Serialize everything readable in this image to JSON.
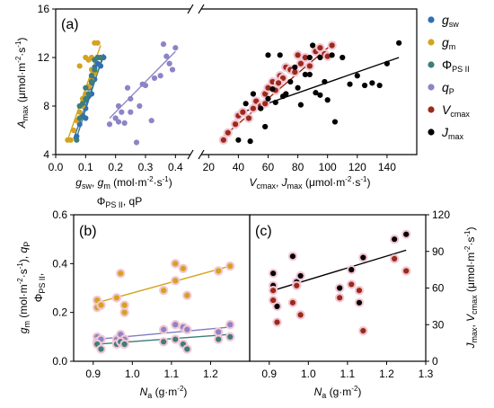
{
  "colors": {
    "gsw": "#2f6fb6",
    "gm": "#d4a320",
    "phips": "#3e7d7a",
    "qp": "#8c84c6",
    "vcmax": "#9a2a1a",
    "jmax": "#000000",
    "halo": "#f3c6d4",
    "gm_fit": "#d4a320",
    "qp_fit": "#7f7bc2",
    "phi_fit": "#3e7d7a",
    "vcmax_fit": "#b4321f",
    "jmax_fit": "#000000"
  },
  "chart_data": [
    {
      "panel": "(a)",
      "type": "scatter",
      "ylabel_main": "A",
      "ylabel_sub": "max",
      "ylabel_unit": " (μmol·m⁻²·s⁻¹)",
      "ylim": [
        4,
        16
      ],
      "yticks": [
        "4",
        "8",
        "12",
        "16"
      ],
      "left": {
        "xlim": [
          0,
          0.45
        ],
        "xticks": [
          "0.0",
          "0.1",
          "0.2",
          "0.3",
          "0.4"
        ],
        "xlabel_line1": "g_sw, g_m (mol·m⁻²·s⁻¹)",
        "xlabel_line2": "Φ_PSII, qP"
      },
      "right": {
        "xlim": [
          15,
          160
        ],
        "xticks": [
          "20",
          "40",
          "60",
          "80",
          "100",
          "120",
          "140"
        ],
        "xlabel": "V_cmax, J_max (μmol·m⁻²·s⁻¹)"
      },
      "legend": [
        {
          "key": "gsw",
          "label": "g",
          "sub": "sw"
        },
        {
          "key": "gm",
          "label": "g",
          "sub": "m"
        },
        {
          "key": "phips",
          "label": "Φ",
          "sub": "PS II"
        },
        {
          "key": "qp",
          "label": "q",
          "sub": "P"
        },
        {
          "key": "vcmax",
          "label": "V",
          "sub": "cmax"
        },
        {
          "key": "jmax",
          "label": "J",
          "sub": "max"
        }
      ],
      "series": [
        {
          "key": "gsw",
          "side": "left",
          "x": [
            0.07,
            0.08,
            0.09,
            0.1,
            0.1,
            0.11,
            0.11,
            0.12,
            0.12,
            0.13,
            0.13,
            0.14,
            0.14,
            0.15,
            0.15,
            0.16,
            0.09,
            0.1,
            0.12,
            0.13
          ],
          "y": [
            5.5,
            6.5,
            7.2,
            7.8,
            8.5,
            8.8,
            9.5,
            9.9,
            10.5,
            10.8,
            11.2,
            11.5,
            12.0,
            12.0,
            11.3,
            12.0,
            8.0,
            7.0,
            9.0,
            10.2
          ]
        },
        {
          "key": "gm",
          "side": "left",
          "x": [
            0.04,
            0.05,
            0.06,
            0.07,
            0.08,
            0.09,
            0.09,
            0.1,
            0.11,
            0.12,
            0.13,
            0.12,
            0.1,
            0.08,
            0.11,
            0.13,
            0.14,
            0.12
          ],
          "y": [
            5.2,
            5.2,
            6.0,
            6.8,
            7.5,
            8.0,
            8.6,
            9.0,
            9.6,
            10.1,
            10.7,
            12.0,
            12.0,
            11.3,
            11.8,
            13.2,
            13.2,
            11.0
          ]
        },
        {
          "key": "phips",
          "side": "left",
          "x": [
            0.07,
            0.08,
            0.08,
            0.09,
            0.1,
            0.1,
            0.11,
            0.12,
            0.12,
            0.13,
            0.13,
            0.14,
            0.15
          ],
          "y": [
            5.2,
            7.0,
            8.0,
            8.2,
            8.6,
            9.5,
            9.0,
            10.0,
            10.5,
            11.0,
            11.8,
            12.0,
            12.0
          ]
        },
        {
          "key": "qp",
          "side": "left",
          "x": [
            0.18,
            0.2,
            0.21,
            0.22,
            0.23,
            0.24,
            0.25,
            0.27,
            0.28,
            0.29,
            0.3,
            0.32,
            0.33,
            0.35,
            0.36,
            0.37,
            0.38,
            0.39,
            0.4,
            0.21,
            0.25
          ],
          "y": [
            6.5,
            7.0,
            8.0,
            7.5,
            6.6,
            9.5,
            7.5,
            5.0,
            8.0,
            9.8,
            9.7,
            6.8,
            10.3,
            10.5,
            13.1,
            12.1,
            11.5,
            11.0,
            12.8,
            6.7,
            8.6
          ]
        },
        {
          "key": "vcmax",
          "side": "right",
          "x": [
            30,
            33,
            38,
            40,
            43,
            47,
            50,
            52,
            55,
            58,
            60,
            63,
            65,
            68,
            70,
            72,
            75,
            78,
            80,
            82,
            85,
            88,
            92,
            95,
            98,
            100,
            103,
            58,
            67
          ],
          "y": [
            5.2,
            5.8,
            6.5,
            7.2,
            7.5,
            7.0,
            7.8,
            8.4,
            8.0,
            9.0,
            9.5,
            10.0,
            9.3,
            10.5,
            10.3,
            11.2,
            11.0,
            10.8,
            12.2,
            11.5,
            12.0,
            11.3,
            12.5,
            12.8,
            12.3,
            12.1,
            13.0,
            8.2,
            9.9
          ]
        },
        {
          "key": "jmax",
          "side": "right",
          "x": [
            40,
            45,
            48,
            50,
            55,
            58,
            60,
            63,
            65,
            68,
            70,
            72,
            75,
            78,
            80,
            82,
            85,
            88,
            90,
            92,
            95,
            98,
            100,
            103,
            105,
            110,
            115,
            120,
            125,
            130,
            135,
            140,
            148,
            88,
            60,
            95
          ],
          "y": [
            5.2,
            8.2,
            5.1,
            9.0,
            7.8,
            6.3,
            8.6,
            9.4,
            8.3,
            12.2,
            8.8,
            9.0,
            10.0,
            11.2,
            9.5,
            8.1,
            10.6,
            10.6,
            13.0,
            9.1,
            8.9,
            10.0,
            8.5,
            12.2,
            6.7,
            12.0,
            9.8,
            10.5,
            9.7,
            9.9,
            9.7,
            11.5,
            13.2,
            12.0,
            12.2,
            12.0
          ]
        }
      ],
      "fits": [
        {
          "key": "gsw",
          "side": "left",
          "x": [
            0.06,
            0.16
          ],
          "y": [
            5.3,
            12.1
          ]
        },
        {
          "key": "gm",
          "side": "left",
          "x": [
            0.04,
            0.15
          ],
          "y": [
            5.2,
            13.0
          ]
        },
        {
          "key": "phips",
          "side": "left",
          "x": [
            0.07,
            0.16
          ],
          "y": [
            5.4,
            12.3
          ]
        },
        {
          "key": "qp",
          "side": "left",
          "x": [
            0.18,
            0.4
          ],
          "y": [
            7.0,
            12.5
          ]
        },
        {
          "key": "vcmax",
          "side": "right",
          "x": [
            30,
            105
          ],
          "y": [
            5.5,
            13.3
          ]
        },
        {
          "key": "jmax",
          "side": "right",
          "x": [
            43,
            148
          ],
          "y": [
            7.5,
            12.0
          ]
        }
      ]
    },
    {
      "panel": "(b)",
      "type": "scatter",
      "ylabel": "g_m (mol·m⁻²·s⁻¹), Φ_PSII, q_P",
      "xlabel": "N_a (g·m⁻²)",
      "xlim": [
        0.85,
        1.3
      ],
      "xticks": [
        "0.9",
        "1.0",
        "1.1",
        "1.2"
      ],
      "ylim": [
        0.0,
        0.6
      ],
      "yticks": [
        "0.0",
        "0.2",
        "0.4",
        "0.6"
      ],
      "series": [
        {
          "key": "gm",
          "x": [
            0.91,
            0.91,
            0.92,
            0.96,
            0.97,
            0.98,
            0.98,
            1.08,
            1.11,
            1.11,
            1.13,
            1.14,
            1.22,
            1.25
          ],
          "y": [
            0.25,
            0.22,
            0.23,
            0.26,
            0.36,
            0.23,
            0.2,
            0.29,
            0.4,
            0.33,
            0.38,
            0.27,
            0.37,
            0.39
          ]
        },
        {
          "key": "qp",
          "x": [
            0.91,
            0.91,
            0.92,
            0.96,
            0.97,
            0.98,
            1.08,
            1.11,
            1.13,
            1.14,
            1.22,
            1.25
          ],
          "y": [
            0.1,
            0.08,
            0.09,
            0.09,
            0.11,
            0.09,
            0.13,
            0.15,
            0.14,
            0.13,
            0.12,
            0.15
          ]
        },
        {
          "key": "phips",
          "x": [
            0.91,
            0.92,
            0.96,
            0.97,
            0.98,
            1.08,
            1.11,
            1.13,
            1.14,
            1.22,
            1.25
          ],
          "y": [
            0.07,
            0.05,
            0.07,
            0.08,
            0.07,
            0.08,
            0.09,
            0.07,
            0.05,
            0.09,
            0.1
          ]
        }
      ],
      "fits": [
        {
          "key": "gm_fit",
          "x": [
            0.91,
            1.25
          ],
          "y": [
            0.24,
            0.39
          ]
        },
        {
          "key": "qp_fit",
          "x": [
            0.91,
            1.25
          ],
          "y": [
            0.09,
            0.14
          ]
        },
        {
          "key": "phi_fit",
          "x": [
            0.91,
            1.25
          ],
          "y": [
            0.07,
            0.11
          ]
        }
      ]
    },
    {
      "panel": "(c)",
      "type": "scatter",
      "ylabel": "J_max, V_cmax (μmol·m⁻²·s⁻¹)",
      "xlabel": "N_a (g·m⁻²)",
      "xlim": [
        0.85,
        1.3
      ],
      "xticks": [
        "0.9",
        "1.0",
        "1.1",
        "1.2",
        "1.3"
      ],
      "ylim": [
        0,
        120
      ],
      "yticks": [
        "0",
        "30",
        "60",
        "90",
        "120"
      ],
      "series": [
        {
          "key": "jmax",
          "x": [
            0.91,
            0.91,
            0.92,
            0.96,
            0.97,
            0.98,
            1.08,
            1.11,
            1.13,
            1.14,
            1.22,
            1.25
          ],
          "y": [
            72,
            62,
            45,
            86,
            65,
            70,
            60,
            75,
            48,
            85,
            100,
            104
          ]
        },
        {
          "key": "vcmax",
          "x": [
            0.91,
            0.91,
            0.92,
            0.96,
            0.97,
            0.98,
            1.08,
            1.11,
            1.13,
            1.14,
            1.22,
            1.25
          ],
          "y": [
            58,
            50,
            32,
            48,
            62,
            38,
            52,
            63,
            58,
            25,
            84,
            74
          ]
        }
      ],
      "fits": [
        {
          "key": "jmax_fit",
          "x": [
            0.91,
            1.25
          ],
          "y": [
            58,
            91
          ]
        }
      ]
    }
  ]
}
